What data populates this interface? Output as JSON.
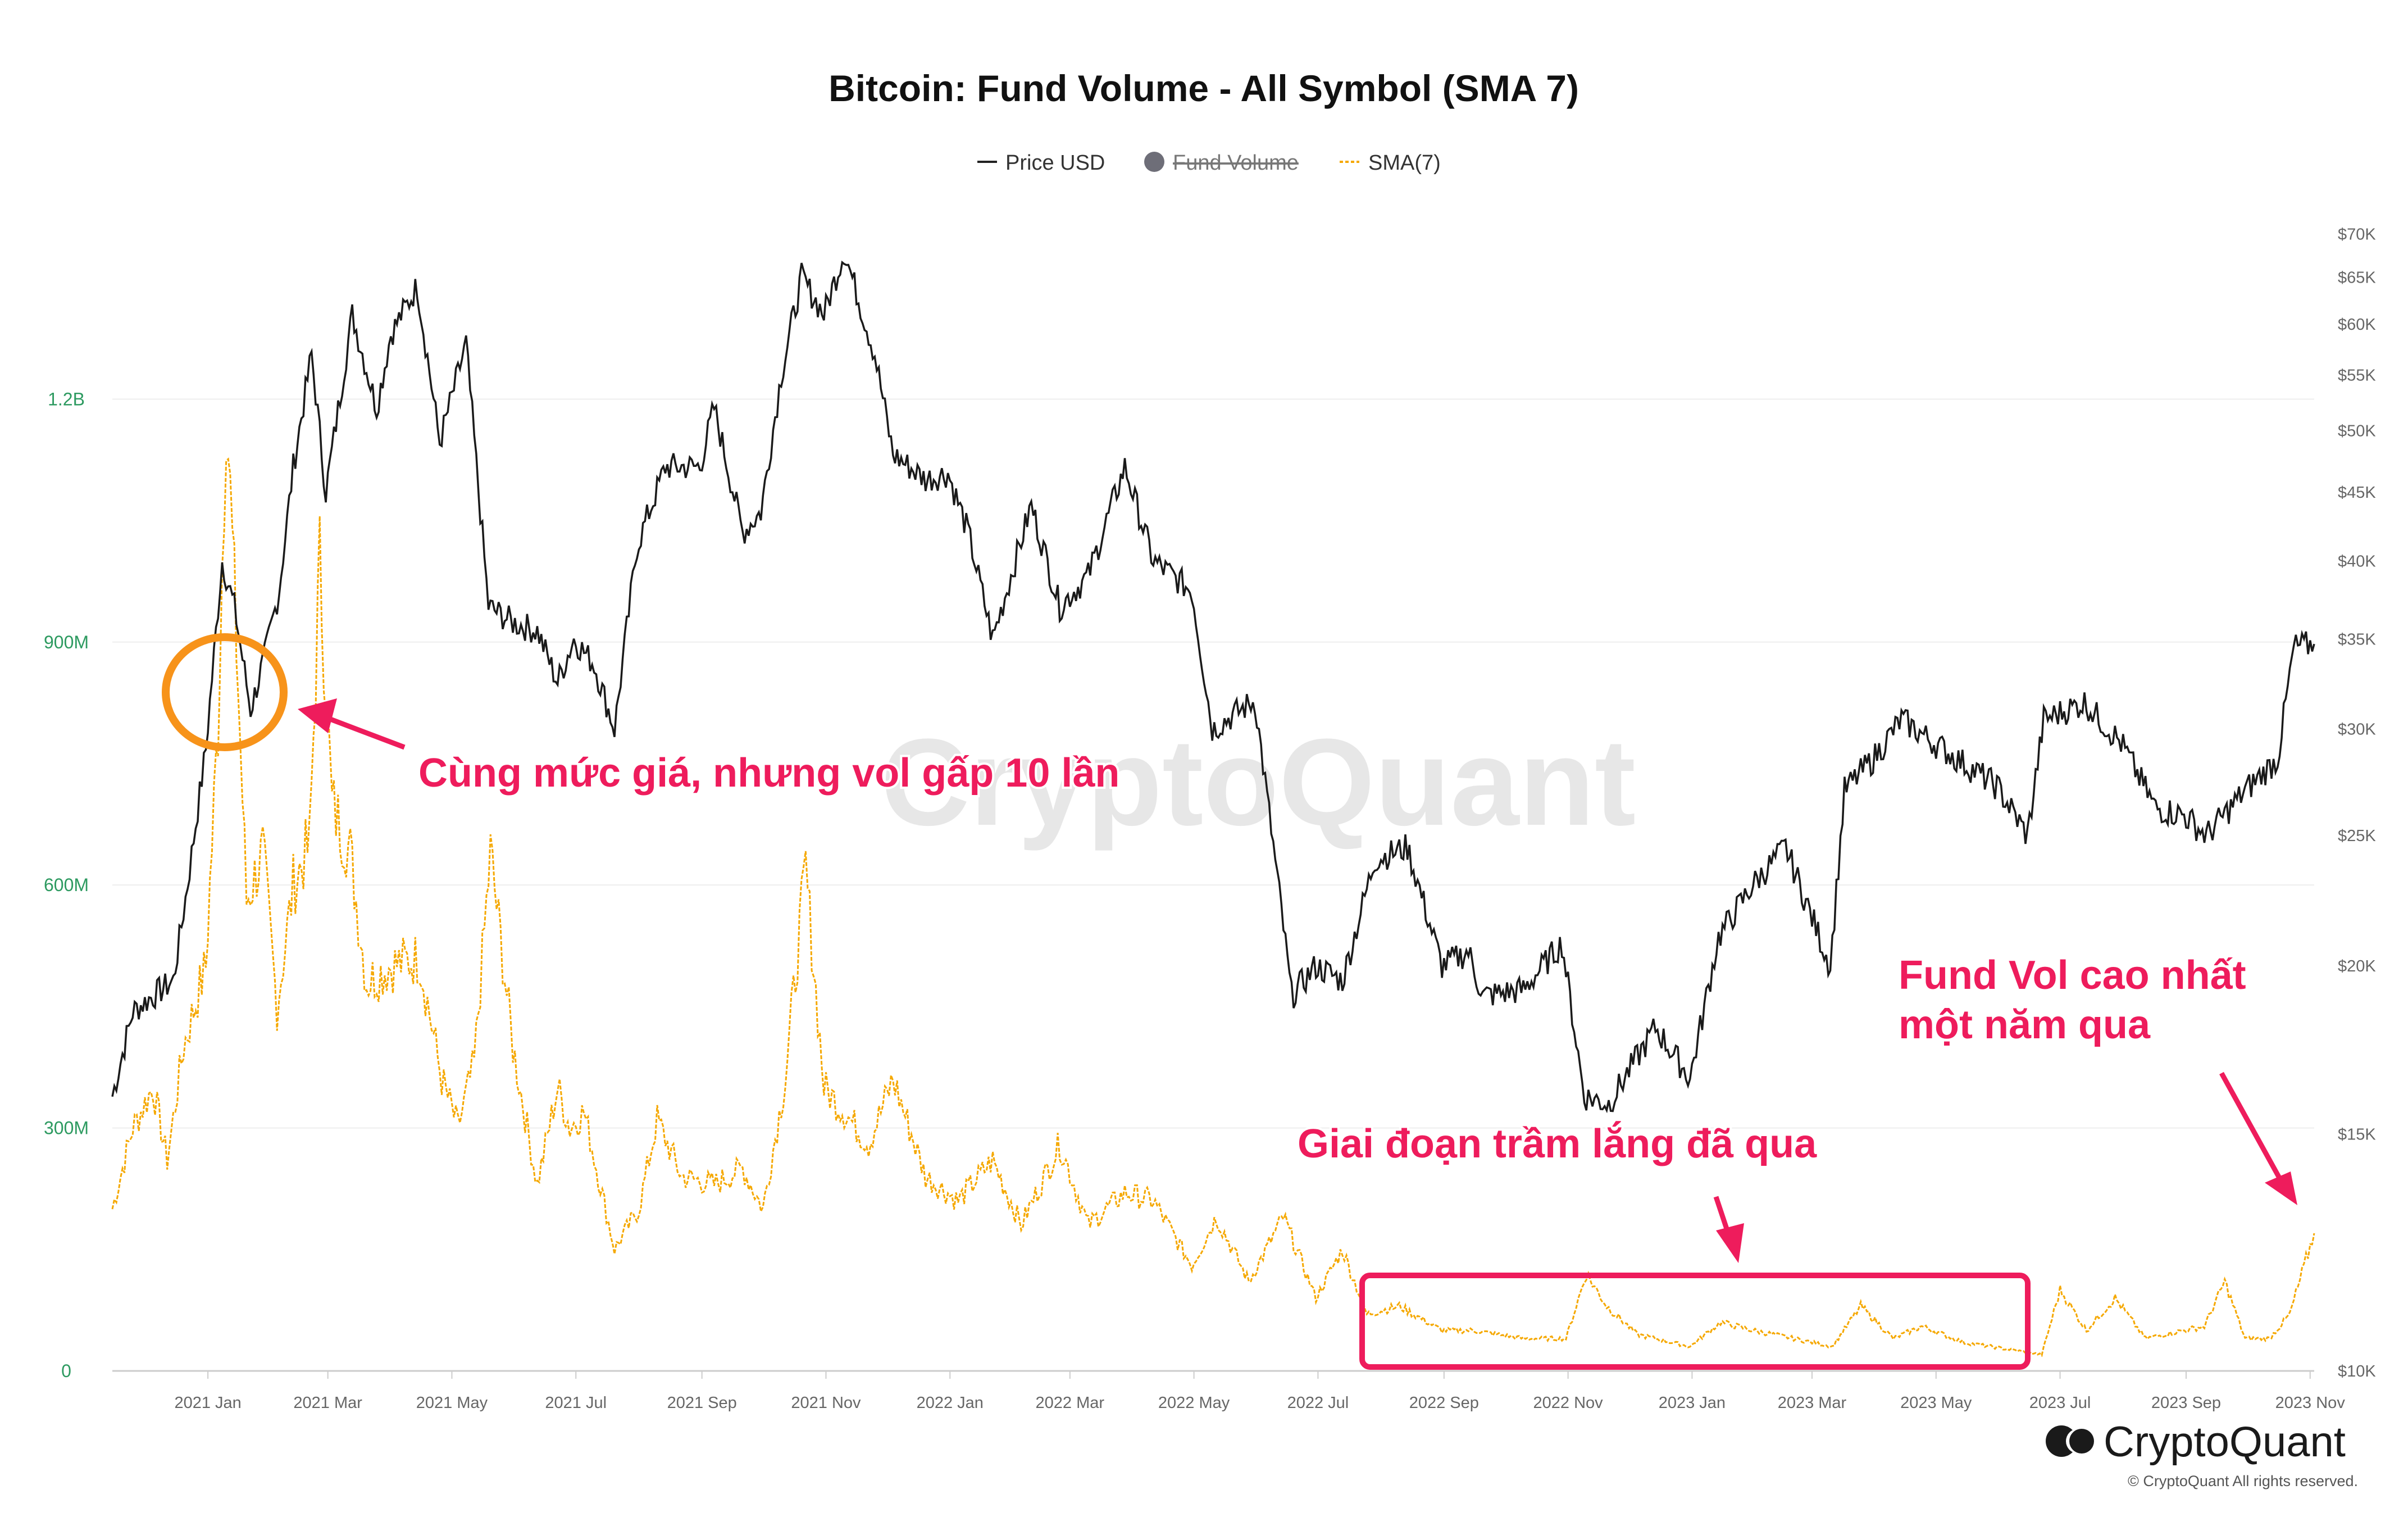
{
  "chart_data": {
    "type": "line",
    "title": "Bitcoin: Fund Volume - All Symbol (SMA 7)",
    "legend": [
      {
        "name": "Price USD",
        "color": "#222222",
        "hidden": false
      },
      {
        "name": "Fund Volume",
        "color": "#6e6e78",
        "hidden": true
      },
      {
        "name": "SMA(7)",
        "color": "#f5a800",
        "hidden": false
      }
    ],
    "legend_placement": "top-center",
    "grid": true,
    "x_ticks": [
      "2021 Jan",
      "2021 Mar",
      "2021 May",
      "2021 Jul",
      "2021 Sep",
      "2021 Nov",
      "2022 Jan",
      "2022 Mar",
      "2022 May",
      "2022 Jul",
      "2022 Sep",
      "2022 Nov",
      "2023 Jan",
      "2023 Mar",
      "2023 May",
      "2023 Jul",
      "2023 Sep",
      "2023 Nov"
    ],
    "x_tick_dates": [
      "2021-01-01",
      "2021-03-01",
      "2021-05-01",
      "2021-07-01",
      "2021-09-01",
      "2021-11-01",
      "2022-01-01",
      "2022-03-01",
      "2022-05-01",
      "2022-07-01",
      "2022-09-01",
      "2022-11-01",
      "2023-01-01",
      "2023-03-01",
      "2023-05-01",
      "2023-07-01",
      "2023-09-01",
      "2023-11-01"
    ],
    "xlim": [
      "2020-11-15",
      "2023-11-03"
    ],
    "left_axis": {
      "ticks": [
        "0",
        "300M",
        "600M",
        "900M",
        "1.2B"
      ],
      "values": [
        0,
        300000000,
        600000000,
        900000000,
        1200000000
      ],
      "ylim": [
        0,
        1450000000
      ]
    },
    "right_axis": {
      "scale": "log",
      "ticks": [
        "$10K",
        "$15K",
        "$20K",
        "$25K",
        "$30K",
        "$35K",
        "$40K",
        "$45K",
        "$50K",
        "$55K",
        "$60K",
        "$65K",
        "$70K"
      ],
      "values": [
        10000,
        15000,
        20000,
        25000,
        30000,
        35000,
        40000,
        45000,
        50000,
        55000,
        60000,
        65000,
        70000
      ],
      "ylim": [
        10000,
        72500
      ]
    },
    "series": [
      {
        "name": "Price USD",
        "axis": "right",
        "points": [
          [
            "2020-11-15",
            16000
          ],
          [
            "2020-11-25",
            18500
          ],
          [
            "2020-12-05",
            19000
          ],
          [
            "2020-12-15",
            19500
          ],
          [
            "2020-12-22",
            23000
          ],
          [
            "2020-12-31",
            29000
          ],
          [
            "2021-01-08",
            40000
          ],
          [
            "2021-01-14",
            37000
          ],
          [
            "2021-01-22",
            31000
          ],
          [
            "2021-01-29",
            34000
          ],
          [
            "2021-02-05",
            38000
          ],
          [
            "2021-02-12",
            47000
          ],
          [
            "2021-02-21",
            57000
          ],
          [
            "2021-02-28",
            45000
          ],
          [
            "2021-03-13",
            61000
          ],
          [
            "2021-03-25",
            52000
          ],
          [
            "2021-04-01",
            59000
          ],
          [
            "2021-04-14",
            64000
          ],
          [
            "2021-04-25",
            49000
          ],
          [
            "2021-05-08",
            58000
          ],
          [
            "2021-05-19",
            37000
          ],
          [
            "2021-05-31",
            36000
          ],
          [
            "2021-06-12",
            35500
          ],
          [
            "2021-06-22",
            32500
          ],
          [
            "2021-06-30",
            35000
          ],
          [
            "2021-07-10",
            33500
          ],
          [
            "2021-07-20",
            30000
          ],
          [
            "2021-07-31",
            41000
          ],
          [
            "2021-08-14",
            47000
          ],
          [
            "2021-08-31",
            47000
          ],
          [
            "2021-09-07",
            52000
          ],
          [
            "2021-09-21",
            42000
          ],
          [
            "2021-09-30",
            43500
          ],
          [
            "2021-10-10",
            55000
          ],
          [
            "2021-10-20",
            65000
          ],
          [
            "2021-10-31",
            61000
          ],
          [
            "2021-11-10",
            68000
          ],
          [
            "2021-11-25",
            57000
          ],
          [
            "2021-12-04",
            48000
          ],
          [
            "2021-12-20",
            46000
          ],
          [
            "2021-12-31",
            46500
          ],
          [
            "2022-01-10",
            42000
          ],
          [
            "2022-01-22",
            35000
          ],
          [
            "2022-02-10",
            44000
          ],
          [
            "2022-02-24",
            37000
          ],
          [
            "2022-03-10",
            39000
          ],
          [
            "2022-03-28",
            47000
          ],
          [
            "2022-04-11",
            40000
          ],
          [
            "2022-04-30",
            38000
          ],
          [
            "2022-05-10",
            30000
          ],
          [
            "2022-05-31",
            31500
          ],
          [
            "2022-06-13",
            22000
          ],
          [
            "2022-06-18",
            19000
          ],
          [
            "2022-06-30",
            20000
          ],
          [
            "2022-07-13",
            19500
          ],
          [
            "2022-07-29",
            24000
          ],
          [
            "2022-08-14",
            24500
          ],
          [
            "2022-08-31",
            20000
          ],
          [
            "2022-09-13",
            20500
          ],
          [
            "2022-09-20",
            19000
          ],
          [
            "2022-10-10",
            19200
          ],
          [
            "2022-10-29",
            20800
          ],
          [
            "2022-11-09",
            16000
          ],
          [
            "2022-11-21",
            15800
          ],
          [
            "2022-12-14",
            18000
          ],
          [
            "2022-12-31",
            16500
          ],
          [
            "2023-01-14",
            21000
          ],
          [
            "2023-01-31",
            23000
          ],
          [
            "2023-02-16",
            24500
          ],
          [
            "2023-03-10",
            20000
          ],
          [
            "2023-03-17",
            27000
          ],
          [
            "2023-03-31",
            28500
          ],
          [
            "2023-04-14",
            30500
          ],
          [
            "2023-04-30",
            29300
          ],
          [
            "2023-05-31",
            27200
          ],
          [
            "2023-06-15",
            25000
          ],
          [
            "2023-06-23",
            30500
          ],
          [
            "2023-07-13",
            31400
          ],
          [
            "2023-07-31",
            29300
          ],
          [
            "2023-08-17",
            26200
          ],
          [
            "2023-08-31",
            25900
          ],
          [
            "2023-09-11",
            25000
          ],
          [
            "2023-09-30",
            27000
          ],
          [
            "2023-10-16",
            28500
          ],
          [
            "2023-10-24",
            34500
          ],
          [
            "2023-11-03",
            34700
          ]
        ]
      },
      {
        "name": "SMA(7)",
        "axis": "left",
        "points": [
          [
            "2020-11-15",
            200000000
          ],
          [
            "2020-11-25",
            300000000
          ],
          [
            "2020-12-05",
            350000000
          ],
          [
            "2020-12-12",
            260000000
          ],
          [
            "2020-12-20",
            400000000
          ],
          [
            "2020-12-31",
            500000000
          ],
          [
            "2021-01-06",
            800000000
          ],
          [
            "2021-01-10",
            1200000000
          ],
          [
            "2021-01-15",
            900000000
          ],
          [
            "2021-01-20",
            580000000
          ],
          [
            "2021-01-28",
            640000000
          ],
          [
            "2021-02-04",
            450000000
          ],
          [
            "2021-02-12",
            600000000
          ],
          [
            "2021-02-20",
            650000000
          ],
          [
            "2021-02-25",
            1000000000
          ],
          [
            "2021-03-03",
            700000000
          ],
          [
            "2021-03-12",
            640000000
          ],
          [
            "2021-03-20",
            480000000
          ],
          [
            "2021-04-01",
            500000000
          ],
          [
            "2021-04-15",
            510000000
          ],
          [
            "2021-04-26",
            360000000
          ],
          [
            "2021-05-04",
            300000000
          ],
          [
            "2021-05-12",
            380000000
          ],
          [
            "2021-05-20",
            640000000
          ],
          [
            "2021-05-31",
            400000000
          ],
          [
            "2021-06-12",
            230000000
          ],
          [
            "2021-06-22",
            350000000
          ],
          [
            "2021-06-28",
            300000000
          ],
          [
            "2021-07-05",
            320000000
          ],
          [
            "2021-07-20",
            150000000
          ],
          [
            "2021-08-01",
            200000000
          ],
          [
            "2021-08-10",
            310000000
          ],
          [
            "2021-08-22",
            240000000
          ],
          [
            "2021-09-07",
            230000000
          ],
          [
            "2021-09-21",
            250000000
          ],
          [
            "2021-10-01",
            200000000
          ],
          [
            "2021-10-12",
            360000000
          ],
          [
            "2021-10-22",
            620000000
          ],
          [
            "2021-10-31",
            350000000
          ],
          [
            "2021-11-10",
            320000000
          ],
          [
            "2021-11-22",
            280000000
          ],
          [
            "2021-12-04",
            360000000
          ],
          [
            "2021-12-20",
            240000000
          ],
          [
            "2022-01-05",
            210000000
          ],
          [
            "2022-01-22",
            260000000
          ],
          [
            "2022-02-05",
            180000000
          ],
          [
            "2022-02-24",
            280000000
          ],
          [
            "2022-03-10",
            180000000
          ],
          [
            "2022-03-28",
            220000000
          ],
          [
            "2022-04-11",
            210000000
          ],
          [
            "2022-04-30",
            130000000
          ],
          [
            "2022-05-12",
            190000000
          ],
          [
            "2022-05-28",
            110000000
          ],
          [
            "2022-06-14",
            190000000
          ],
          [
            "2022-06-30",
            90000000
          ],
          [
            "2022-07-13",
            150000000
          ],
          [
            "2022-07-25",
            70000000
          ],
          [
            "2022-08-10",
            80000000
          ],
          [
            "2022-08-31",
            50000000
          ],
          [
            "2022-09-15",
            50000000
          ],
          [
            "2022-10-10",
            40000000
          ],
          [
            "2022-10-31",
            40000000
          ],
          [
            "2022-11-10",
            120000000
          ],
          [
            "2022-11-20",
            80000000
          ],
          [
            "2022-12-05",
            45000000
          ],
          [
            "2022-12-31",
            30000000
          ],
          [
            "2023-01-15",
            60000000
          ],
          [
            "2023-01-31",
            50000000
          ],
          [
            "2023-02-20",
            40000000
          ],
          [
            "2023-03-11",
            30000000
          ],
          [
            "2023-03-25",
            80000000
          ],
          [
            "2023-04-10",
            40000000
          ],
          [
            "2023-04-24",
            55000000
          ],
          [
            "2023-05-15",
            35000000
          ],
          [
            "2023-06-10",
            25000000
          ],
          [
            "2023-06-22",
            20000000
          ],
          [
            "2023-07-01",
            100000000
          ],
          [
            "2023-07-14",
            50000000
          ],
          [
            "2023-07-28",
            90000000
          ],
          [
            "2023-08-12",
            40000000
          ],
          [
            "2023-08-31",
            50000000
          ],
          [
            "2023-09-10",
            55000000
          ],
          [
            "2023-09-20",
            110000000
          ],
          [
            "2023-09-30",
            40000000
          ],
          [
            "2023-10-12",
            40000000
          ],
          [
            "2023-10-22",
            70000000
          ],
          [
            "2023-11-03",
            170000000
          ]
        ]
      }
    ],
    "annotations": [
      {
        "text": "Cùng mức giá, nhưng vol gấp 10 lần",
        "color": "#ee1c5c"
      },
      {
        "text": "Giai đoạn trầm lắng đã qua",
        "color": "#ee1c5c"
      },
      {
        "text_lines": [
          "Fund Vol cao nhất",
          "một năm qua"
        ],
        "color": "#ee1c5c"
      }
    ],
    "highlight_colors": {
      "circle": "#f7931a",
      "box": "#ee1c5c"
    },
    "watermark": "CryptoQuant"
  },
  "branding": {
    "logo_text": "CryptoQuant",
    "copyright": "© CryptoQuant All rights reserved."
  }
}
